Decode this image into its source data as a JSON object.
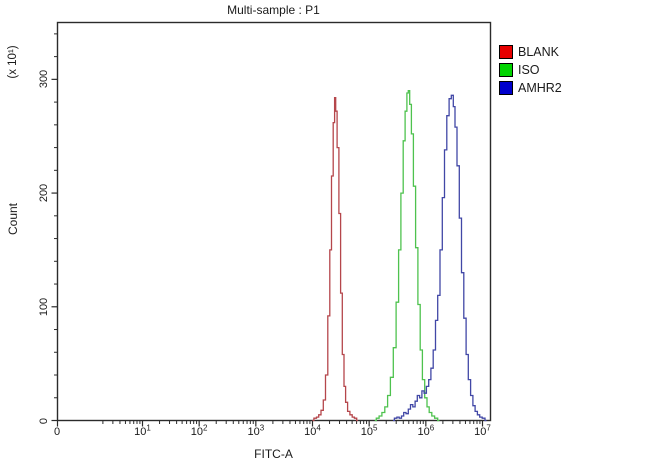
{
  "chart_data": {
    "type": "histogram-overlay",
    "title": "Multi-sample : P1",
    "xlabel": "FITC-A",
    "ylabel": "Count",
    "y_axis_multiplier": "(x 10¹)",
    "x_scale": "log10",
    "x_origin_label": "0",
    "x_base_label": "10",
    "x_tick_exponents": [
      1,
      2,
      3,
      4,
      5,
      6,
      7
    ],
    "ylim": [
      0,
      350
    ],
    "y_major_ticks": [
      0,
      100,
      200,
      300
    ],
    "y_minor_step": 20,
    "grid": false,
    "axis_color": "#2b2b2b",
    "background_color": "#ffffff",
    "approx_peaks": [
      {
        "name": "BLANK",
        "x_value": 25000,
        "peak_count": 284
      },
      {
        "name": "ISO",
        "x_value": 500000,
        "peak_count": 290
      },
      {
        "name": "AMHR2",
        "x_value": 3000000,
        "peak_count": 286
      }
    ],
    "series": [
      {
        "name": "BLANK",
        "color": "#b5464b",
        "points": [
          [
            4.0,
            0
          ],
          [
            4.05,
            2
          ],
          [
            4.09,
            3
          ],
          [
            4.13,
            5
          ],
          [
            4.17,
            9
          ],
          [
            4.21,
            18
          ],
          [
            4.25,
            40
          ],
          [
            4.29,
            92
          ],
          [
            4.32,
            150
          ],
          [
            4.35,
            215
          ],
          [
            4.38,
            262
          ],
          [
            4.4,
            284
          ],
          [
            4.42,
            272
          ],
          [
            4.45,
            240
          ],
          [
            4.48,
            182
          ],
          [
            4.51,
            112
          ],
          [
            4.54,
            58
          ],
          [
            4.57,
            30
          ],
          [
            4.6,
            16
          ],
          [
            4.64,
            8
          ],
          [
            4.68,
            5
          ],
          [
            4.72,
            3
          ],
          [
            4.76,
            2
          ],
          [
            4.8,
            0
          ]
        ]
      },
      {
        "name": "ISO",
        "color": "#4ec24e",
        "points": [
          [
            5.1,
            0
          ],
          [
            5.15,
            2
          ],
          [
            5.2,
            4
          ],
          [
            5.25,
            7
          ],
          [
            5.3,
            12
          ],
          [
            5.35,
            22
          ],
          [
            5.4,
            38
          ],
          [
            5.45,
            64
          ],
          [
            5.5,
            104
          ],
          [
            5.54,
            150
          ],
          [
            5.58,
            200
          ],
          [
            5.62,
            246
          ],
          [
            5.65,
            272
          ],
          [
            5.68,
            288
          ],
          [
            5.7,
            290
          ],
          [
            5.73,
            278
          ],
          [
            5.76,
            252
          ],
          [
            5.8,
            206
          ],
          [
            5.84,
            152
          ],
          [
            5.88,
            102
          ],
          [
            5.92,
            62
          ],
          [
            5.96,
            36
          ],
          [
            6.0,
            20
          ],
          [
            6.04,
            12
          ],
          [
            6.08,
            7
          ],
          [
            6.13,
            4
          ],
          [
            6.18,
            2
          ],
          [
            6.24,
            0
          ]
        ]
      },
      {
        "name": "AMHR2",
        "color": "#4147a6",
        "points": [
          [
            5.42,
            0
          ],
          [
            5.47,
            2
          ],
          [
            5.51,
            3
          ],
          [
            5.55,
            2
          ],
          [
            5.59,
            4
          ],
          [
            5.63,
            7
          ],
          [
            5.67,
            6
          ],
          [
            5.71,
            10
          ],
          [
            5.75,
            14
          ],
          [
            5.79,
            12
          ],
          [
            5.83,
            17
          ],
          [
            5.87,
            22
          ],
          [
            5.91,
            20
          ],
          [
            5.95,
            26
          ],
          [
            5.99,
            24
          ],
          [
            6.03,
            30
          ],
          [
            6.07,
            36
          ],
          [
            6.11,
            46
          ],
          [
            6.15,
            62
          ],
          [
            6.19,
            88
          ],
          [
            6.23,
            110
          ],
          [
            6.27,
            150
          ],
          [
            6.31,
            196
          ],
          [
            6.35,
            238
          ],
          [
            6.39,
            268
          ],
          [
            6.43,
            283
          ],
          [
            6.47,
            286
          ],
          [
            6.5,
            276
          ],
          [
            6.53,
            258
          ],
          [
            6.57,
            224
          ],
          [
            6.61,
            178
          ],
          [
            6.65,
            130
          ],
          [
            6.69,
            90
          ],
          [
            6.73,
            58
          ],
          [
            6.77,
            36
          ],
          [
            6.81,
            22
          ],
          [
            6.85,
            13
          ],
          [
            6.89,
            8
          ],
          [
            6.93,
            5
          ],
          [
            6.97,
            3
          ],
          [
            7.02,
            2
          ],
          [
            7.07,
            0
          ]
        ]
      }
    ]
  },
  "legend": {
    "items": [
      {
        "label": "BLANK",
        "color": "#e60000"
      },
      {
        "label": "ISO",
        "color": "#00d400"
      },
      {
        "label": "AMHR2",
        "color": "#0000cc"
      }
    ]
  }
}
